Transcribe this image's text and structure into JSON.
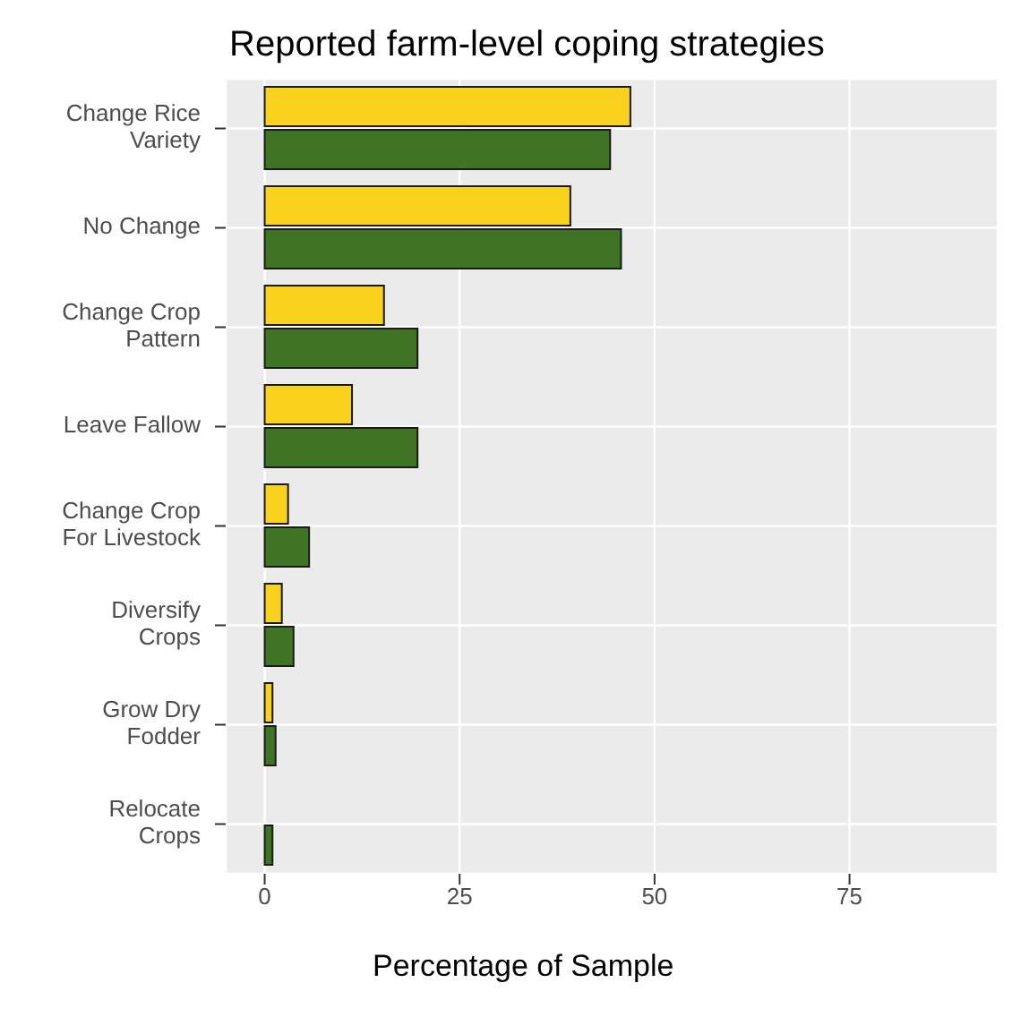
{
  "chart_data": {
    "type": "bar",
    "orientation": "horizontal",
    "title": "Reported farm-level coping strategies",
    "xlabel": "Percentage of Sample",
    "categories": [
      "Change Rice Variety",
      "No Change",
      "Change Crop Pattern",
      "Leave Fallow",
      "Change Crop For Livestock",
      "Diversify Crops",
      "Grow Dry Fodder",
      "Relocate Crops"
    ],
    "series": [
      {
        "color": "#f9d21e",
        "values": [
          46.9,
          39.2,
          15.3,
          11.2,
          3.0,
          2.2,
          1.0,
          0
        ]
      },
      {
        "color": "#3f7424",
        "values": [
          44.3,
          45.7,
          19.6,
          19.6,
          5.7,
          3.7,
          1.4,
          1.0
        ]
      }
    ],
    "xlim": [
      -5,
      94
    ],
    "xticks": [
      0,
      25,
      50,
      75
    ],
    "grid": true,
    "legend": false
  }
}
